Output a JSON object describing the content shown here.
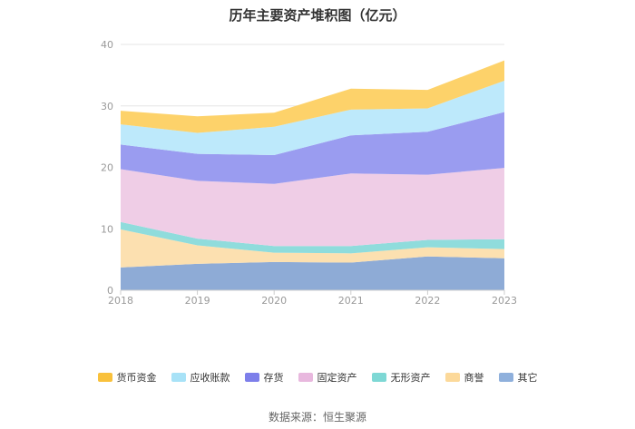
{
  "chart_data": {
    "type": "area",
    "stacked": true,
    "title": "历年主要资产堆积图（亿元）",
    "x": [
      "2018",
      "2019",
      "2020",
      "2021",
      "2022",
      "2023"
    ],
    "ylim": [
      0,
      40
    ],
    "yticks": [
      "0",
      "10",
      "20",
      "30",
      "40"
    ],
    "grid": true,
    "legend_position": "bottom",
    "series": [
      {
        "name": "其它",
        "color": "#8eabd6",
        "values": [
          3.7,
          4.3,
          4.6,
          4.5,
          5.5,
          5.2
        ]
      },
      {
        "name": "商誉",
        "color": "#fce0b0",
        "values": [
          6.2,
          3.0,
          1.5,
          1.5,
          1.5,
          1.5
        ]
      },
      {
        "name": "无形资产",
        "color": "#8fdcdc",
        "values": [
          1.2,
          1.1,
          1.1,
          1.2,
          1.2,
          1.6
        ]
      },
      {
        "name": "固定资产",
        "color": "#efcde6",
        "values": [
          8.6,
          9.4,
          10.1,
          11.8,
          10.6,
          11.6
        ]
      },
      {
        "name": "存货",
        "color": "#9a9cf0",
        "values": [
          4.0,
          4.4,
          4.7,
          6.2,
          7.0,
          9.1
        ]
      },
      {
        "name": "应收账款",
        "color": "#bde9fb",
        "values": [
          3.3,
          3.4,
          4.6,
          4.2,
          3.8,
          5.1
        ]
      },
      {
        "name": "货币资金",
        "color": "#fdd26a",
        "values": [
          2.2,
          2.7,
          2.3,
          3.4,
          3.0,
          3.3
        ]
      }
    ]
  },
  "legend_order": [
    "货币资金",
    "应收账款",
    "存货",
    "固定资产",
    "无形资产",
    "商誉",
    "其它"
  ],
  "legend_colors": [
    "#f9c13c",
    "#a8e2f7",
    "#7d7fea",
    "#e8b8de",
    "#7ed8d5",
    "#fcd99a",
    "#8fb0dc"
  ],
  "source": "数据来源：恒生聚源"
}
